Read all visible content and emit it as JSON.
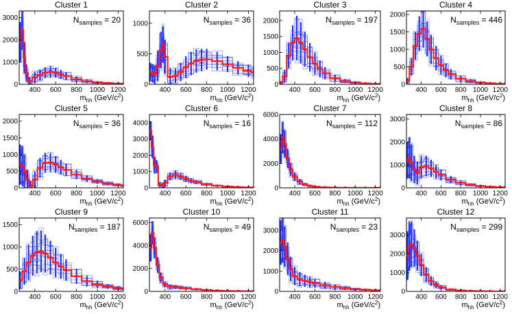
{
  "figure": {
    "description_text_only": "",
    "x_axis_unit_sup": "2",
    "x_axis_main": "m",
    "x_axis_sub": "hh",
    "x_axis_unit": "(GeV/c",
    "x_axis_close": ")",
    "n_label_main": "N",
    "n_label_sub": "samples",
    "n_label_eq": "= "
  },
  "colors": {
    "band": "#1f2bff",
    "band_light": "#6f78ff",
    "mean": "#ff1a1a",
    "axis": "#000000"
  },
  "chart_data": [
    {
      "type": "line",
      "title": "Cluster 1",
      "n_samples": "20",
      "xlim": [
        250,
        1250
      ],
      "ylim": [
        0,
        3300
      ],
      "xticks": [
        400,
        600,
        800,
        1000,
        1200
      ],
      "yticks": [
        0,
        1000,
        2000,
        3000
      ],
      "x": [
        260,
        280,
        300,
        320,
        350,
        400,
        450,
        500,
        550,
        600,
        650,
        700,
        800,
        900,
        1000,
        1100,
        1200,
        1250
      ],
      "mean": [
        1900,
        2450,
        1200,
        500,
        130,
        320,
        420,
        520,
        560,
        520,
        450,
        370,
        230,
        140,
        80,
        50,
        30,
        20
      ],
      "spread": [
        900,
        900,
        700,
        400,
        200,
        250,
        250,
        250,
        250,
        220,
        200,
        180,
        130,
        90,
        60,
        40,
        30,
        20
      ]
    },
    {
      "type": "line",
      "title": "Cluster 2",
      "n_samples": "36",
      "xlim": [
        250,
        1250
      ],
      "ylim": [
        0,
        1200
      ],
      "xticks": [
        400,
        600,
        800,
        1000,
        1200
      ],
      "yticks": [
        0,
        500,
        1000
      ],
      "x": [
        260,
        280,
        300,
        330,
        360,
        380,
        400,
        450,
        500,
        550,
        600,
        650,
        700,
        750,
        800,
        900,
        1000,
        1100,
        1200,
        1250
      ],
      "mean": [
        200,
        180,
        160,
        300,
        560,
        650,
        450,
        120,
        140,
        200,
        280,
        340,
        380,
        400,
        410,
        380,
        330,
        270,
        220,
        200
      ],
      "spread": [
        150,
        150,
        150,
        250,
        300,
        300,
        280,
        150,
        120,
        150,
        180,
        190,
        190,
        180,
        170,
        150,
        130,
        110,
        100,
        90
      ]
    },
    {
      "type": "line",
      "title": "Cluster 3",
      "n_samples": "197",
      "xlim": [
        250,
        1250
      ],
      "ylim": [
        0,
        2300
      ],
      "xticks": [
        400,
        600,
        800,
        1000,
        1200
      ],
      "yticks": [
        0,
        500,
        1000,
        1500,
        2000
      ],
      "x": [
        260,
        300,
        340,
        380,
        420,
        460,
        500,
        550,
        600,
        650,
        700,
        800,
        900,
        1000,
        1100,
        1200,
        1250
      ],
      "mean": [
        50,
        250,
        900,
        1300,
        1450,
        1300,
        1100,
        850,
        650,
        480,
        350,
        190,
        100,
        55,
        30,
        15,
        10
      ],
      "spread": [
        50,
        200,
        400,
        550,
        700,
        650,
        550,
        450,
        350,
        260,
        190,
        110,
        60,
        35,
        20,
        10,
        8
      ]
    },
    {
      "type": "line",
      "title": "Cluster 4",
      "n_samples": "446",
      "xlim": [
        250,
        1250
      ],
      "ylim": [
        0,
        2100
      ],
      "xticks": [
        400,
        600,
        800,
        1000,
        1200
      ],
      "yticks": [
        0,
        500,
        1000,
        1500,
        2000
      ],
      "x": [
        260,
        300,
        340,
        380,
        420,
        460,
        500,
        550,
        600,
        650,
        700,
        800,
        900,
        1000,
        1100,
        1200,
        1250
      ],
      "mean": [
        100,
        500,
        1100,
        1450,
        1600,
        1300,
        1000,
        750,
        550,
        400,
        290,
        160,
        90,
        50,
        30,
        15,
        10
      ],
      "spread": [
        80,
        250,
        400,
        500,
        550,
        500,
        420,
        350,
        270,
        200,
        150,
        90,
        55,
        30,
        18,
        10,
        8
      ]
    },
    {
      "type": "line",
      "title": "Cluster 5",
      "n_samples": "36",
      "xlim": [
        250,
        1250
      ],
      "ylim": [
        0,
        2200
      ],
      "xticks": [
        400,
        600,
        800,
        1000,
        1200
      ],
      "yticks": [
        0,
        500,
        1000,
        1500,
        2000
      ],
      "x": [
        260,
        280,
        300,
        330,
        360,
        400,
        450,
        500,
        550,
        600,
        650,
        700,
        800,
        900,
        1000,
        1100,
        1200,
        1250
      ],
      "mean": [
        700,
        650,
        500,
        250,
        60,
        250,
        600,
        750,
        760,
        700,
        620,
        540,
        400,
        280,
        190,
        130,
        90,
        70
      ],
      "spread": [
        600,
        600,
        500,
        300,
        150,
        250,
        300,
        300,
        280,
        250,
        220,
        190,
        140,
        100,
        70,
        50,
        40,
        30
      ]
    },
    {
      "type": "line",
      "title": "Cluster 6",
      "n_samples": "16",
      "xlim": [
        250,
        1250
      ],
      "ylim": [
        0,
        4500
      ],
      "xticks": [
        400,
        600,
        800,
        1000,
        1200
      ],
      "yticks": [
        0,
        1000,
        2000,
        3000,
        4000
      ],
      "x": [
        260,
        280,
        300,
        320,
        350,
        380,
        400,
        450,
        500,
        550,
        600,
        650,
        700,
        800,
        900,
        1000,
        1100,
        1200,
        1250
      ],
      "mean": [
        3500,
        2500,
        1400,
        1300,
        200,
        150,
        300,
        700,
        800,
        700,
        560,
        440,
        350,
        220,
        130,
        80,
        50,
        30,
        20
      ],
      "spread": [
        600,
        700,
        500,
        400,
        150,
        150,
        200,
        250,
        250,
        220,
        190,
        150,
        120,
        80,
        55,
        35,
        25,
        18,
        15
      ]
    },
    {
      "type": "line",
      "title": "Cluster 7",
      "n_samples": "112",
      "xlim": [
        250,
        1250
      ],
      "ylim": [
        0,
        6000
      ],
      "xticks": [
        400,
        600,
        800,
        1000,
        1200
      ],
      "yticks": [
        0,
        2000,
        4000,
        6000
      ],
      "x": [
        260,
        280,
        300,
        330,
        360,
        400,
        450,
        500,
        550,
        600,
        700,
        800,
        900,
        1000,
        1100,
        1200,
        1250
      ],
      "mean": [
        3200,
        4100,
        3600,
        2400,
        1500,
        900,
        500,
        280,
        160,
        90,
        40,
        20,
        10,
        5,
        3,
        2,
        1
      ],
      "spread": [
        1200,
        1300,
        1100,
        800,
        550,
        350,
        220,
        130,
        80,
        50,
        25,
        12,
        6,
        4,
        2,
        1,
        1
      ]
    },
    {
      "type": "line",
      "title": "Cluster 8",
      "n_samples": "86",
      "xlim": [
        250,
        1250
      ],
      "ylim": [
        0,
        3200
      ],
      "xticks": [
        400,
        600,
        800,
        1000,
        1200
      ],
      "yticks": [
        0,
        1000,
        2000,
        3000
      ],
      "x": [
        260,
        280,
        300,
        330,
        360,
        400,
        450,
        500,
        550,
        600,
        700,
        800,
        900,
        1000,
        1100,
        1200,
        1250
      ],
      "mean": [
        1200,
        1300,
        1100,
        800,
        650,
        900,
        950,
        850,
        700,
        560,
        360,
        220,
        130,
        80,
        50,
        30,
        20
      ],
      "spread": [
        800,
        900,
        800,
        600,
        500,
        500,
        450,
        380,
        300,
        240,
        160,
        100,
        60,
        35,
        22,
        14,
        10
      ]
    },
    {
      "type": "line",
      "title": "Cluster 9",
      "n_samples": "187",
      "xlim": [
        250,
        1250
      ],
      "ylim": [
        0,
        1650
      ],
      "xticks": [
        400,
        600,
        800,
        1000,
        1200
      ],
      "yticks": [
        0,
        500,
        1000,
        1500
      ],
      "x": [
        260,
        300,
        340,
        380,
        420,
        460,
        500,
        550,
        600,
        650,
        700,
        800,
        900,
        1000,
        1100,
        1200,
        1250
      ],
      "mean": [
        250,
        450,
        650,
        800,
        880,
        900,
        850,
        760,
        650,
        560,
        480,
        340,
        230,
        160,
        110,
        75,
        60
      ],
      "spread": [
        200,
        300,
        400,
        450,
        480,
        470,
        430,
        380,
        330,
        280,
        240,
        170,
        120,
        80,
        55,
        40,
        30
      ]
    },
    {
      "type": "line",
      "title": "Cluster 10",
      "n_samples": "49",
      "xlim": [
        250,
        1250
      ],
      "ylim": [
        0,
        6400
      ],
      "xticks": [
        400,
        600,
        800,
        1000,
        1200
      ],
      "yticks": [
        0,
        2000,
        4000,
        6000
      ],
      "x": [
        260,
        280,
        300,
        330,
        360,
        400,
        450,
        500,
        550,
        600,
        700,
        800,
        900,
        1000,
        1100,
        1200,
        1250
      ],
      "mean": [
        3800,
        5100,
        3800,
        2300,
        1200,
        600,
        400,
        380,
        330,
        280,
        190,
        120,
        70,
        40,
        25,
        15,
        10
      ],
      "spread": [
        1200,
        1000,
        900,
        700,
        450,
        250,
        200,
        180,
        150,
        120,
        80,
        50,
        30,
        20,
        12,
        8,
        5
      ]
    },
    {
      "type": "line",
      "title": "Cluster 11",
      "n_samples": "23",
      "xlim": [
        250,
        1250
      ],
      "ylim": [
        0,
        3600
      ],
      "xticks": [
        400,
        600,
        800,
        1000,
        1200
      ],
      "yticks": [
        0,
        1000,
        2000,
        3000
      ],
      "x": [
        260,
        280,
        300,
        330,
        360,
        400,
        450,
        500,
        550,
        600,
        700,
        800,
        900,
        1000,
        1100,
        1200,
        1250
      ],
      "mean": [
        2400,
        2500,
        2200,
        1600,
        1100,
        750,
        600,
        520,
        460,
        400,
        300,
        220,
        160,
        110,
        80,
        55,
        45
      ],
      "spread": [
        1100,
        1100,
        1000,
        800,
        600,
        450,
        350,
        300,
        260,
        220,
        170,
        120,
        90,
        60,
        45,
        30,
        25
      ]
    },
    {
      "type": "line",
      "title": "Cluster 12",
      "n_samples": "299",
      "xlim": [
        250,
        1250
      ],
      "ylim": [
        0,
        3900
      ],
      "xticks": [
        400,
        600,
        800,
        1000,
        1200
      ],
      "yticks": [
        0,
        1000,
        2000,
        3000
      ],
      "x": [
        260,
        280,
        300,
        330,
        360,
        400,
        450,
        500,
        550,
        600,
        700,
        800,
        900,
        1000,
        1100,
        1200,
        1250
      ],
      "mean": [
        1900,
        2400,
        2500,
        2300,
        1900,
        1400,
        900,
        550,
        350,
        220,
        100,
        50,
        25,
        12,
        6,
        3,
        2
      ],
      "spread": [
        1300,
        1300,
        1200,
        1000,
        800,
        600,
        400,
        260,
        170,
        110,
        50,
        25,
        12,
        6,
        3,
        2,
        1
      ]
    }
  ]
}
